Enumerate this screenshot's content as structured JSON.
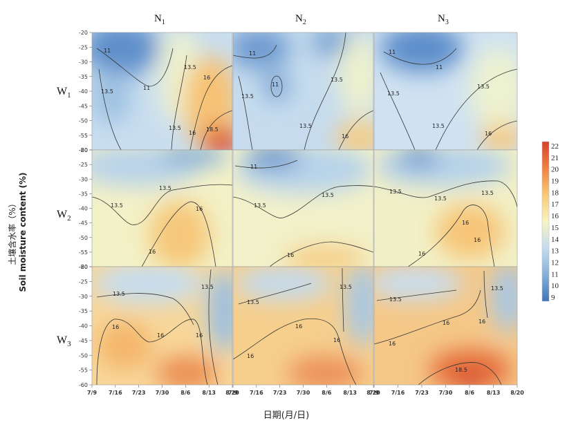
{
  "chart_data": {
    "type": "heatmap",
    "columns": [
      {
        "base": "N",
        "sub": "1"
      },
      {
        "base": "N",
        "sub": "2"
      },
      {
        "base": "N",
        "sub": "3"
      }
    ],
    "rows": [
      {
        "base": "W",
        "sub": "1"
      },
      {
        "base": "W",
        "sub": "2"
      },
      {
        "base": "W",
        "sub": "3"
      }
    ],
    "ylabel_cn": "土壤含水率（%）",
    "ylabel_en": "Soil moisture content (%)",
    "xlabel": "日期(月/日)",
    "x_ticks": [
      "7/9",
      "7/16",
      "7/23",
      "7/30",
      "8/6",
      "8/13",
      "8/20"
    ],
    "y_ticks": [
      "-20",
      "-25",
      "-30",
      "-35",
      "-40",
      "-45",
      "-50",
      "-55",
      "-60"
    ],
    "ylim": [
      -60,
      -20
    ],
    "colorbar": {
      "ticks": [
        "22",
        "21",
        "20",
        "19",
        "18",
        "17",
        "16",
        "15",
        "14",
        "13",
        "12",
        "11",
        "10",
        "9"
      ],
      "range": [
        9,
        22
      ],
      "colors": [
        "#3f74b8",
        "#86b1d9",
        "#c4dcef",
        "#f7f3c2",
        "#f9c977",
        "#ef8244",
        "#d8402c"
      ]
    },
    "contour_levels": [
      "11",
      "13.5",
      "16",
      "18.5"
    ],
    "panels": [
      {
        "row": "W1",
        "col": "N1",
        "labels": [
          "11",
          "11",
          "13.5",
          "13.5",
          "13.5",
          "16",
          "16",
          "18.5"
        ]
      },
      {
        "row": "W1",
        "col": "N2",
        "labels": [
          "11",
          "11",
          "13.5",
          "13.5",
          "16"
        ]
      },
      {
        "row": "W1",
        "col": "N3",
        "labels": [
          "11",
          "11",
          "13.5",
          "13.5",
          "13.5",
          "16"
        ]
      },
      {
        "row": "W2",
        "col": "N1",
        "labels": [
          "13.5",
          "13.5",
          "16",
          "16"
        ]
      },
      {
        "row": "W2",
        "col": "N2",
        "labels": [
          "11",
          "13.5",
          "13.5",
          "16"
        ]
      },
      {
        "row": "W2",
        "col": "N3",
        "labels": [
          "13.5",
          "13.5",
          "13.5",
          "16",
          "16",
          "16"
        ]
      },
      {
        "row": "W3",
        "col": "N1",
        "labels": [
          "13.5",
          "13.5",
          "16",
          "16",
          "16"
        ]
      },
      {
        "row": "W3",
        "col": "N2",
        "labels": [
          "13.5",
          "13.5",
          "16",
          "16",
          "16"
        ]
      },
      {
        "row": "W3",
        "col": "N3",
        "labels": [
          "13.5",
          "13.5",
          "16",
          "16",
          "18.5"
        ]
      }
    ]
  }
}
